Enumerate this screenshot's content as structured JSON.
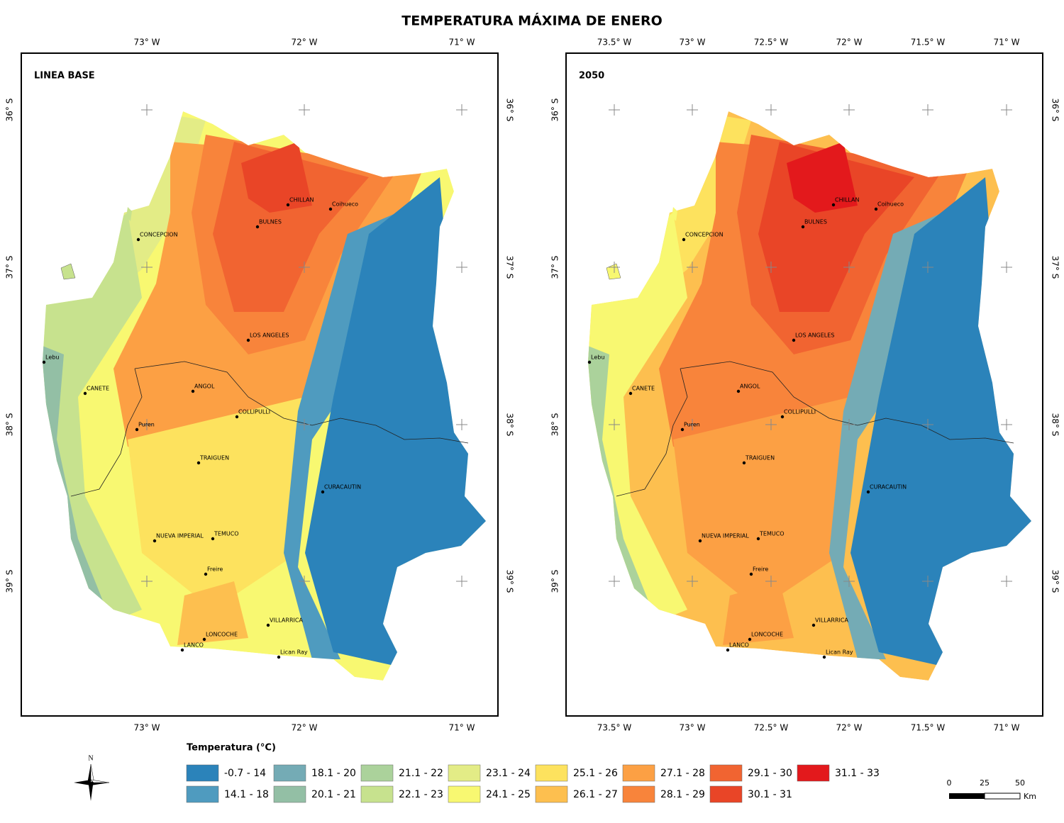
{
  "title": "TEMPERATURA MÁXIMA DE ENERO",
  "maps": [
    {
      "label": "LINEA BASE",
      "lon_ticks": [
        "73° W",
        "72° W",
        "71° W"
      ],
      "lat_ticks": [
        "36° S",
        "37° S",
        "38° S",
        "39° S"
      ]
    },
    {
      "label": "2050",
      "lon_ticks": [
        "73.5° W",
        "73° W",
        "72.5° W",
        "72° W",
        "71.5° W",
        "71° W"
      ],
      "lat_ticks": [
        "36° S",
        "37° S",
        "38° S",
        "39° S"
      ]
    }
  ],
  "cities": [
    "CHILLAN",
    "Coihueco",
    "BULNES",
    "CONCEPCION",
    "LOS ANGELES",
    "Lebu",
    "CANETE",
    "ANGOL",
    "COLLIPULLI",
    "Puren",
    "TRAIGUEN",
    "CURACAUTIN",
    "NUEVA IMPERIAL",
    "TEMUCO",
    "Freire",
    "VILLARRICA",
    "LONCOCHE",
    "LANCO",
    "Lican Ray"
  ],
  "legend": {
    "title": "Temperatura (°C)",
    "classes": [
      {
        "label": "-0.7 - 14",
        "color": "#2b83ba"
      },
      {
        "label": "14.1 - 18",
        "color": "#4f9bbf"
      },
      {
        "label": "18.1 - 20",
        "color": "#74abb5"
      },
      {
        "label": "20.1 - 21",
        "color": "#93bfa5"
      },
      {
        "label": "21.1 - 22",
        "color": "#abd29b"
      },
      {
        "label": "22.1 - 23",
        "color": "#c7e28e"
      },
      {
        "label": "23.1 - 24",
        "color": "#e3ec86"
      },
      {
        "label": "24.1 - 25",
        "color": "#f8f871"
      },
      {
        "label": "25.1 - 26",
        "color": "#fde25e"
      },
      {
        "label": "26.1 - 27",
        "color": "#fdbf4f"
      },
      {
        "label": "27.1 - 28",
        "color": "#fca044"
      },
      {
        "label": "28.1 - 29",
        "color": "#f8843b"
      },
      {
        "label": "29.1 - 30",
        "color": "#f16431"
      },
      {
        "label": "30.1 - 31",
        "color": "#e94527"
      },
      {
        "label": "31.1 - 33",
        "color": "#e3191c"
      }
    ]
  },
  "scale_bar": {
    "labels": [
      "0",
      "25",
      "50"
    ],
    "unit": "Km"
  },
  "north": "N"
}
